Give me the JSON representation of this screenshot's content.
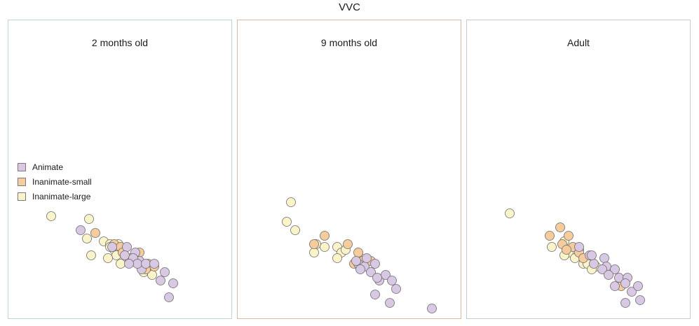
{
  "figure": {
    "title": "VVC"
  },
  "legend": {
    "items": [
      {
        "label": "Animate",
        "color": "#d9c8e3"
      },
      {
        "label": "Inanimate-small",
        "color": "#f7cc9c"
      },
      {
        "label": "Inanimate-large",
        "color": "#fbf4c9"
      }
    ]
  },
  "chart_data": [
    {
      "type": "scatter",
      "title": "2 months old",
      "xlim": [
        0,
        100
      ],
      "ylim": [
        0,
        100
      ],
      "series": [
        {
          "name": "Animate",
          "color": "#d9c8e3",
          "points": [
            [
              31,
              70
            ],
            [
              46,
              76
            ],
            [
              53,
              76
            ],
            [
              57,
              78
            ],
            [
              52,
              79
            ],
            [
              59,
              81
            ],
            [
              56,
              80
            ],
            [
              60,
              84
            ],
            [
              58,
              82
            ],
            [
              62,
              82
            ],
            [
              54,
              82
            ],
            [
              69,
              88
            ],
            [
              71,
              85
            ],
            [
              73,
              94
            ],
            [
              75,
              89
            ],
            [
              66,
              82
            ]
          ]
        },
        {
          "name": "Inanimate-small",
          "color": "#f7cc9c",
          "points": [
            [
              38,
              71
            ],
            [
              47,
              75
            ],
            [
              50,
              76
            ],
            [
              51,
              78
            ],
            [
              54,
              80
            ],
            [
              59,
              78
            ],
            [
              63,
              82
            ],
            [
              66,
              83
            ],
            [
              62,
              84
            ]
          ]
        },
        {
          "name": "Inanimate-large",
          "color": "#fbf4c9",
          "points": [
            [
              17,
              65
            ],
            [
              35,
              66
            ],
            [
              34,
              73
            ],
            [
              42,
              74
            ],
            [
              49,
              75
            ],
            [
              47,
              77
            ],
            [
              45,
              75
            ],
            [
              45,
              76
            ],
            [
              50,
              77
            ],
            [
              36,
              79
            ],
            [
              48,
              79
            ],
            [
              44,
              80
            ],
            [
              50,
              82
            ],
            [
              61,
              85
            ],
            [
              65,
              86
            ]
          ]
        }
      ]
    },
    {
      "type": "scatter",
      "title": "9 months old",
      "xlim": [
        0,
        100
      ],
      "ylim": [
        0,
        100
      ],
      "series": [
        {
          "name": "Animate",
          "color": "#d9c8e3",
          "points": [
            [
              54,
              82
            ],
            [
              57,
              83
            ],
            [
              62,
              82
            ],
            [
              60,
              85
            ],
            [
              64,
              88
            ],
            [
              67,
              86
            ],
            [
              63,
              87
            ],
            [
              55,
              84
            ],
            [
              62,
              93
            ],
            [
              70,
              88
            ],
            [
              72,
              91
            ],
            [
              69,
              96
            ],
            [
              89,
              98
            ],
            [
              53,
              81
            ],
            [
              58,
              80
            ]
          ]
        },
        {
          "name": "Inanimate-small",
          "color": "#f7cc9c",
          "points": [
            [
              38,
              72
            ],
            [
              33,
              75
            ],
            [
              49,
              75
            ],
            [
              54,
              78
            ],
            [
              56,
              81
            ],
            [
              60,
              81
            ],
            [
              52,
              82
            ]
          ]
        },
        {
          "name": "Inanimate-large",
          "color": "#fbf4c9",
          "points": [
            [
              22,
              60
            ],
            [
              20,
              67
            ],
            [
              24,
              70
            ],
            [
              34,
              75
            ],
            [
              33,
              78
            ],
            [
              38,
              76
            ],
            [
              44,
              76
            ],
            [
              46,
              78
            ],
            [
              48,
              77
            ],
            [
              44,
              80
            ],
            [
              55,
              80
            ]
          ]
        }
      ]
    },
    {
      "type": "scatter",
      "title": "Adult",
      "xlim": [
        0,
        100
      ],
      "ylim": [
        0,
        100
      ],
      "series": [
        {
          "name": "Animate",
          "color": "#d9c8e3",
          "points": [
            [
              50,
              76
            ],
            [
              55,
              79
            ],
            [
              62,
              80
            ],
            [
              63,
              83
            ],
            [
              67,
              84
            ],
            [
              57,
              82
            ],
            [
              61,
              84
            ],
            [
              64,
              86
            ],
            [
              69,
              87
            ],
            [
              73,
              87
            ],
            [
              67,
              90
            ],
            [
              72,
              89
            ],
            [
              75,
              92
            ],
            [
              78,
              90
            ],
            [
              72,
              96
            ],
            [
              79,
              95
            ],
            [
              56,
              79
            ]
          ]
        },
        {
          "name": "Inanimate-small",
          "color": "#f7cc9c",
          "points": [
            [
              41,
              69
            ],
            [
              36,
              72
            ],
            [
              45,
              72
            ],
            [
              42,
              75
            ],
            [
              47,
              76
            ],
            [
              44,
              77
            ],
            [
              50,
              78
            ],
            [
              52,
              80
            ],
            [
              70,
              90
            ]
          ]
        },
        {
          "name": "Inanimate-large",
          "color": "#fbf4c9",
          "points": [
            [
              17,
              64
            ],
            [
              37,
              76
            ],
            [
              43,
              74
            ],
            [
              45,
              78
            ],
            [
              50,
              77
            ],
            [
              48,
              80
            ],
            [
              52,
              82
            ],
            [
              43,
              79
            ],
            [
              54,
              82
            ],
            [
              58,
              83
            ],
            [
              56,
              84
            ]
          ]
        }
      ]
    }
  ]
}
